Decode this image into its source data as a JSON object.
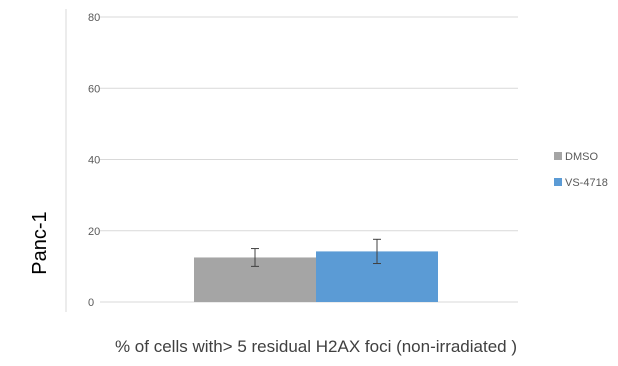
{
  "chart_data": {
    "type": "bar",
    "title": "",
    "xlabel": "% of cells with> 5 residual H2AX foci (non-irradiated )",
    "ylabel": "Panc-1",
    "ylim": [
      0,
      80
    ],
    "yticks": [
      0,
      20,
      40,
      60,
      80
    ],
    "grid": true,
    "legend_position": "right",
    "categories": [
      ""
    ],
    "series": [
      {
        "name": "DMSO",
        "color": "#a5a5a5",
        "values": [
          12.5
        ],
        "error": [
          2.5
        ]
      },
      {
        "name": "VS-4718",
        "color": "#5b9bd5",
        "values": [
          14.2
        ],
        "error": [
          3.4
        ]
      }
    ]
  }
}
